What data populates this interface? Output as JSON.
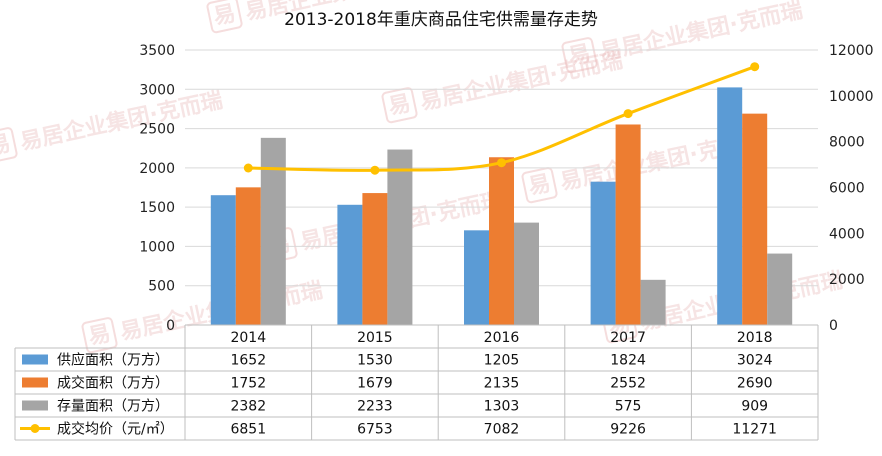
{
  "watermark": {
    "seal_char": "易",
    "text_1": "易居企业集团",
    "text_2": "·克而瑞"
  },
  "chart_data": {
    "type": "bar",
    "title": "2013-2018年重庆商品住宅供需量存走势",
    "categories": [
      "2014",
      "2015",
      "2016",
      "2017",
      "2018"
    ],
    "y_left": {
      "ticks": [
        "0",
        "500",
        "1000",
        "1500",
        "2000",
        "2500",
        "3000",
        "3500"
      ],
      "range": [
        0,
        3500
      ]
    },
    "y_right": {
      "ticks": [
        "0",
        "2000",
        "4000",
        "6000",
        "8000",
        "10000",
        "12000"
      ],
      "range": [
        0,
        12000
      ]
    },
    "grid": true,
    "legend": "table-bottom",
    "series": [
      {
        "name": "供应面积（万方）",
        "type": "bar",
        "axis": "left",
        "color": "#5b9bd5",
        "values": [
          1652,
          1530,
          1205,
          1824,
          3024
        ],
        "labels": [
          "1652",
          "1530",
          "1205",
          "1824",
          "3024"
        ]
      },
      {
        "name": "成交面积（万方）",
        "type": "bar",
        "axis": "left",
        "color": "#ed7d31",
        "values": [
          1752,
          1679,
          2135,
          2552,
          2690
        ],
        "labels": [
          "1752",
          "1679",
          "2135",
          "2552",
          "2690"
        ]
      },
      {
        "name": "存量面积（万方）",
        "type": "bar",
        "axis": "left",
        "color": "#a5a5a5",
        "values": [
          2382,
          2233,
          1303,
          575,
          909
        ],
        "labels": [
          "2382",
          "2233",
          "1303",
          "575",
          "909"
        ]
      },
      {
        "name": "成交均价（元/㎡）",
        "type": "line",
        "axis": "right",
        "color": "#ffc000",
        "values": [
          6851,
          6753,
          7082,
          9226,
          11271
        ],
        "labels": [
          "6851",
          "6753",
          "7082",
          "9226",
          "11271"
        ]
      }
    ]
  }
}
